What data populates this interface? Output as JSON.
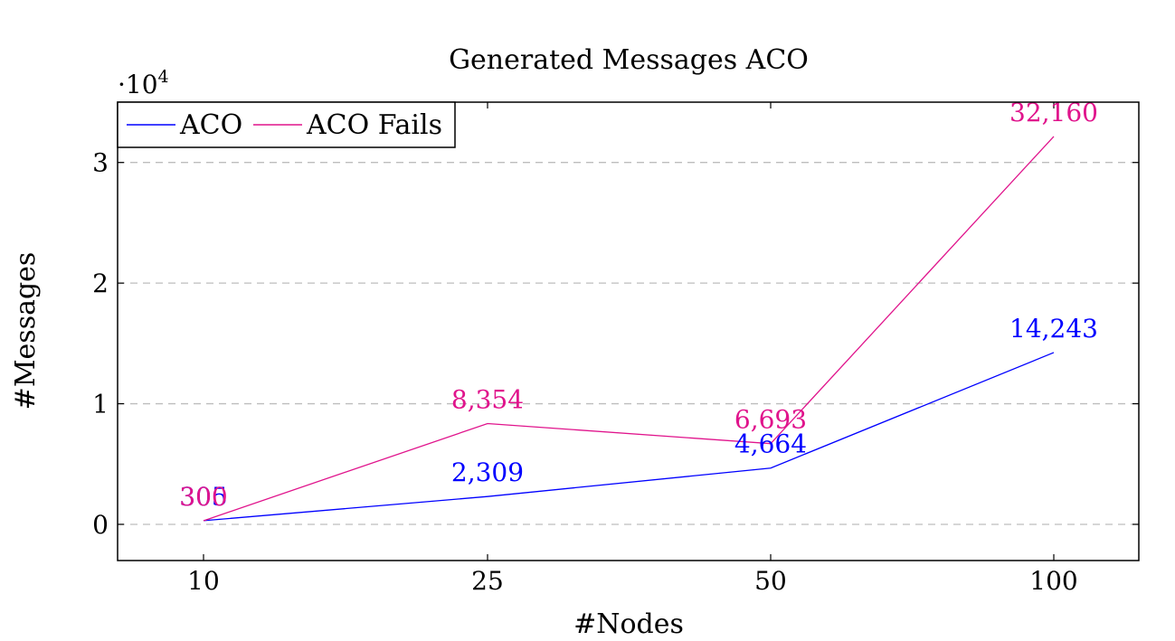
{
  "chart_data": {
    "type": "line",
    "title": "Generated Messages ACO",
    "xlabel": "#Nodes",
    "ylabel": "#Messages",
    "y_scale_label": "·10",
    "y_scale_exponent": "4",
    "categories": [
      "10",
      "25",
      "50",
      "100"
    ],
    "y_ticks": [
      0,
      10000,
      20000,
      30000
    ],
    "y_tick_labels": [
      "0",
      "1",
      "2",
      "3"
    ],
    "ylim": [
      -3000,
      35000
    ],
    "grid": "horizontal dashed",
    "legend_position": "top-left",
    "series": [
      {
        "name": "ACO",
        "color": "#0000ff",
        "values": [
          305,
          2309,
          4664,
          14243
        ],
        "labels": [
          "305",
          "2,309",
          "4,664",
          "14,243"
        ]
      },
      {
        "name": "ACO Fails",
        "color": "#e0148c",
        "values": [
          300,
          8354,
          6693,
          32160
        ],
        "labels": [
          "300",
          "8,354",
          "6,693",
          "32,160"
        ]
      }
    ]
  }
}
